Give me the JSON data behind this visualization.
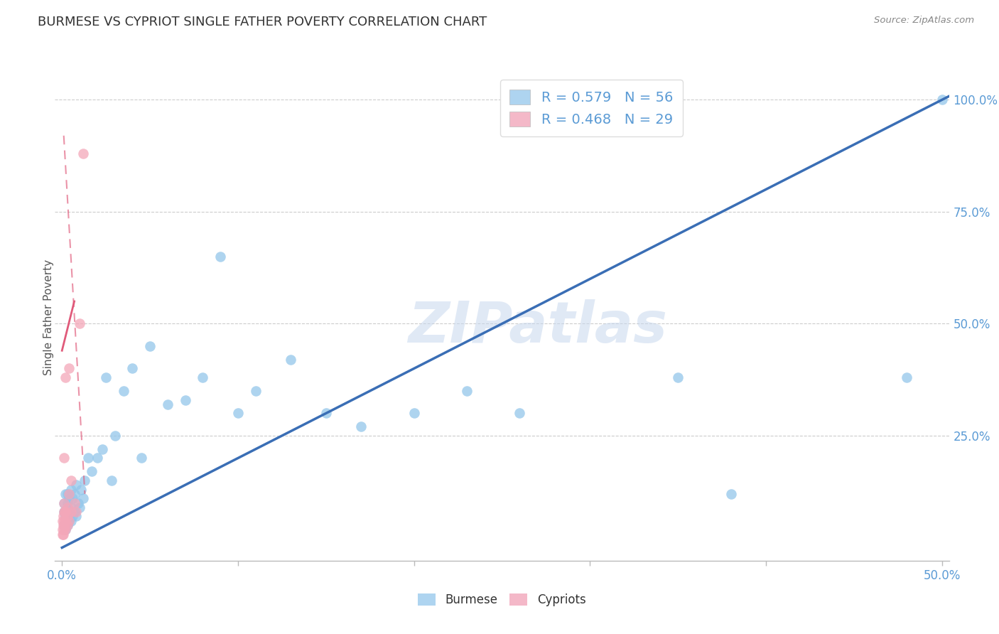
{
  "title": "BURMESE VS CYPRIOT SINGLE FATHER POVERTY CORRELATION CHART",
  "source": "Source: ZipAtlas.com",
  "ylabel": "Single Father Poverty",
  "y_tick_labels": [
    "100.0%",
    "75.0%",
    "50.0%",
    "25.0%"
  ],
  "y_tick_vals": [
    1.0,
    0.75,
    0.5,
    0.25
  ],
  "burmese_R": "0.579",
  "burmese_N": "56",
  "cypriot_R": "0.468",
  "cypriot_N": "29",
  "burmese_color": "#93C6EA",
  "cypriot_color": "#F4A7B9",
  "burmese_line_color": "#3A6EB5",
  "cypriot_line_color": "#E05A7A",
  "watermark_color": "#C8D8EE",
  "burmese_x": [
    0.001,
    0.001,
    0.001,
    0.002,
    0.002,
    0.002,
    0.002,
    0.003,
    0.003,
    0.003,
    0.003,
    0.003,
    0.004,
    0.004,
    0.004,
    0.005,
    0.005,
    0.005,
    0.006,
    0.006,
    0.007,
    0.007,
    0.008,
    0.008,
    0.009,
    0.01,
    0.011,
    0.012,
    0.013,
    0.015,
    0.017,
    0.02,
    0.023,
    0.025,
    0.028,
    0.03,
    0.035,
    0.04,
    0.045,
    0.05,
    0.06,
    0.07,
    0.08,
    0.09,
    0.1,
    0.11,
    0.13,
    0.15,
    0.17,
    0.2,
    0.23,
    0.26,
    0.35,
    0.38,
    0.48,
    0.5
  ],
  "burmese_y": [
    0.05,
    0.08,
    0.1,
    0.04,
    0.07,
    0.08,
    0.12,
    0.05,
    0.07,
    0.09,
    0.1,
    0.12,
    0.06,
    0.08,
    0.11,
    0.06,
    0.09,
    0.13,
    0.07,
    0.11,
    0.08,
    0.12,
    0.07,
    0.14,
    0.1,
    0.09,
    0.13,
    0.11,
    0.15,
    0.2,
    0.17,
    0.2,
    0.22,
    0.38,
    0.15,
    0.25,
    0.35,
    0.4,
    0.2,
    0.45,
    0.32,
    0.33,
    0.38,
    0.65,
    0.3,
    0.35,
    0.42,
    0.3,
    0.27,
    0.3,
    0.35,
    0.3,
    0.38,
    0.12,
    0.38,
    1.0
  ],
  "cypriot_x": [
    0.0003,
    0.0005,
    0.0005,
    0.0006,
    0.0007,
    0.0008,
    0.001,
    0.001,
    0.001,
    0.001,
    0.001,
    0.0015,
    0.0015,
    0.002,
    0.002,
    0.002,
    0.002,
    0.003,
    0.003,
    0.003,
    0.004,
    0.004,
    0.004,
    0.005,
    0.005,
    0.007,
    0.008,
    0.01,
    0.012
  ],
  "cypriot_y": [
    0.03,
    0.04,
    0.06,
    0.05,
    0.07,
    0.03,
    0.04,
    0.06,
    0.08,
    0.1,
    0.2,
    0.05,
    0.08,
    0.04,
    0.06,
    0.08,
    0.38,
    0.05,
    0.07,
    0.09,
    0.06,
    0.12,
    0.4,
    0.08,
    0.15,
    0.1,
    0.08,
    0.5,
    0.88
  ],
  "burmese_regline": [
    0.0,
    0.5,
    0.0,
    1.02
  ],
  "cypriot_regline_solid": [
    0.0,
    0.007,
    0.45,
    0.55
  ],
  "cypriot_regline_dash": [
    0.0,
    0.013,
    0.1,
    1.05
  ]
}
